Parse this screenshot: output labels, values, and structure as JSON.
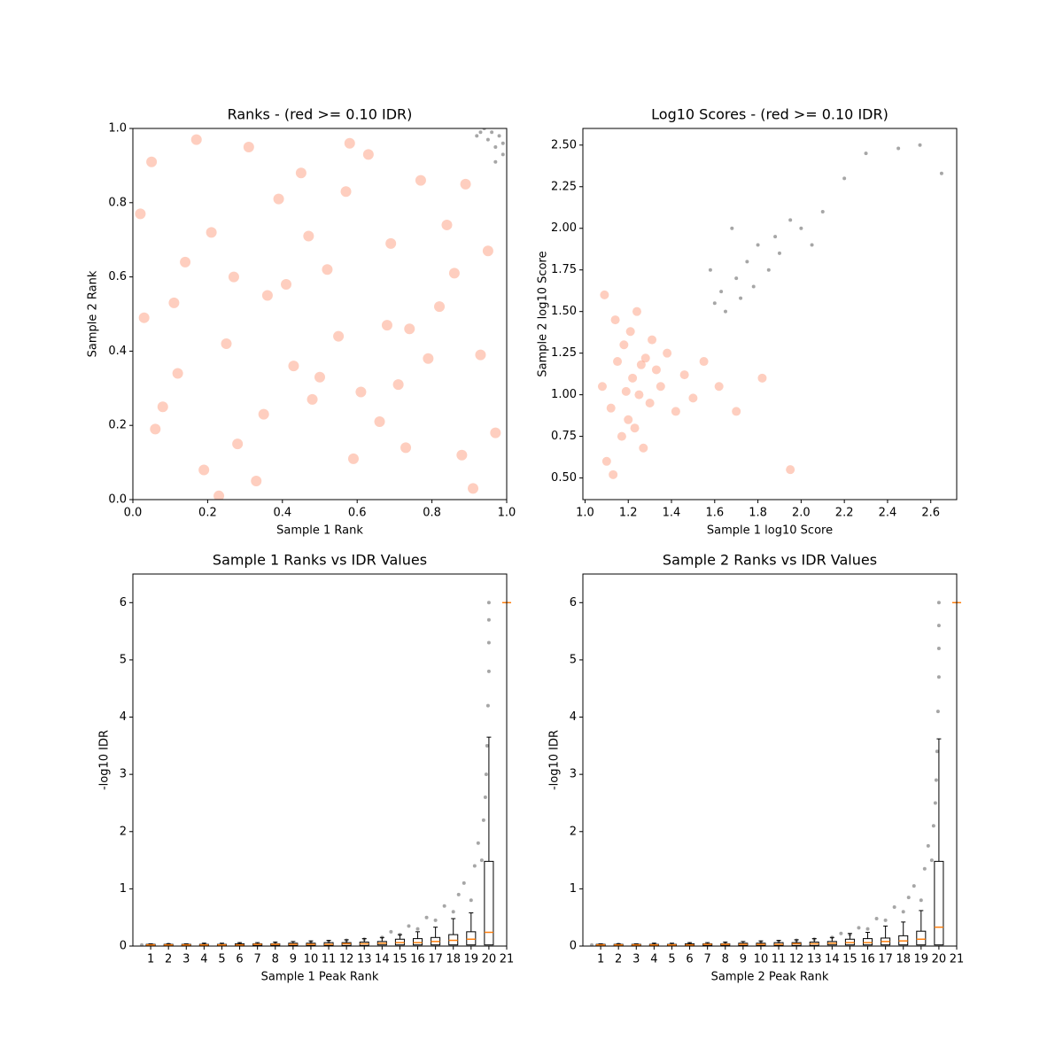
{
  "chart_data": [
    {
      "type": "scatter",
      "title": "Ranks - (red >= 0.10 IDR)",
      "xlabel": "Sample 1 Rank",
      "ylabel": "Sample 2 Rank",
      "xlim": [
        0,
        1
      ],
      "ylim": [
        0,
        1
      ],
      "xticks": [
        {
          "value": 0,
          "label": "0.0"
        },
        0.2,
        0.4,
        0.6,
        0.8,
        {
          "value": 1,
          "label": "1.0"
        }
      ],
      "yticks": [
        {
          "value": 0,
          "label": "0.0"
        },
        0.2,
        0.4,
        0.6,
        0.8,
        {
          "value": 1,
          "label": "1.0"
        }
      ],
      "series": [
        {
          "color": "#fc9272",
          "x": [
            0.05,
            0.12,
            0.21,
            0.33,
            0.41,
            0.57,
            0.66,
            0.74,
            0.88,
            0.95,
            0.03,
            0.17,
            0.28,
            0.39,
            0.48,
            0.52,
            0.63,
            0.79,
            0.84,
            0.91,
            0.08,
            0.14,
            0.25,
            0.36,
            0.45,
            0.59,
            0.69,
            0.71,
            0.82,
            0.97,
            0.02,
            0.19,
            0.31,
            0.43,
            0.55,
            0.61,
            0.77,
            0.86,
            0.93,
            0.11,
            0.23,
            0.35,
            0.47,
            0.58,
            0.68,
            0.73,
            0.89,
            0.06,
            0.27,
            0.5
          ],
          "values": [
            0.91,
            0.34,
            0.72,
            0.05,
            0.58,
            0.83,
            0.21,
            0.46,
            0.12,
            0.67,
            0.49,
            0.97,
            0.15,
            0.81,
            0.27,
            0.62,
            0.93,
            0.38,
            0.74,
            0.03,
            0.25,
            0.64,
            0.42,
            0.55,
            0.88,
            0.11,
            0.69,
            0.31,
            0.52,
            0.18,
            0.77,
            0.08,
            0.95,
            0.36,
            0.44,
            0.29,
            0.86,
            0.61,
            0.39,
            0.53,
            0.01,
            0.23,
            0.71,
            0.96,
            0.47,
            0.14,
            0.85,
            0.19,
            0.6,
            0.33
          ]
        },
        {
          "color": "#000000",
          "x": [
            0.93,
            0.95,
            0.97,
            0.99,
            0.96,
            0.98,
            0.94,
            0.99,
            0.92,
            0.97
          ],
          "values": [
            0.99,
            0.97,
            0.95,
            0.93,
            0.99,
            0.98,
            1.0,
            0.96,
            0.98,
            0.91
          ]
        }
      ]
    },
    {
      "type": "scatter",
      "title": "Log10 Scores - (red >= 0.10 IDR)",
      "xlabel": "Sample 1 log10 Score",
      "ylabel": "Sample 2 log10 Score",
      "xlim": [
        0.99,
        2.72
      ],
      "ylim": [
        0.37,
        2.6
      ],
      "xticks": [
        {
          "value": 1,
          "label": "1.0"
        },
        1.2,
        1.4,
        1.6,
        1.8,
        {
          "value": 2,
          "label": "2.0"
        },
        2.2,
        2.4,
        2.6
      ],
      "yticks": [
        {
          "value": 0.5,
          "label": "0.50"
        },
        0.75,
        {
          "value": 1,
          "label": "1.00"
        },
        1.25,
        {
          "value": 1.5,
          "label": "1.50"
        },
        1.75,
        {
          "value": 2,
          "label": "2.00"
        },
        2.25,
        {
          "value": 2.5,
          "label": "2.50"
        }
      ],
      "series": [
        {
          "color": "#fc9272",
          "x": [
            1.08,
            1.12,
            1.15,
            1.18,
            1.2,
            1.22,
            1.25,
            1.28,
            1.3,
            1.33,
            1.1,
            1.14,
            1.17,
            1.21,
            1.24,
            1.27,
            1.35,
            1.38,
            1.42,
            1.46,
            1.09,
            1.13,
            1.19,
            1.23,
            1.26,
            1.31,
            1.5,
            1.55,
            1.62,
            1.7,
            1.82,
            1.95
          ],
          "values": [
            1.05,
            0.92,
            1.2,
            1.3,
            0.85,
            1.1,
            1.0,
            1.22,
            0.95,
            1.15,
            0.6,
            1.45,
            0.75,
            1.38,
            1.5,
            0.68,
            1.05,
            1.25,
            0.9,
            1.12,
            1.6,
            0.52,
            1.02,
            0.8,
            1.18,
            1.33,
            0.98,
            1.2,
            1.05,
            0.9,
            1.1,
            0.55
          ]
        },
        {
          "color": "#000000",
          "x": [
            1.6,
            1.63,
            1.65,
            1.7,
            1.72,
            1.75,
            1.78,
            1.8,
            1.85,
            1.88,
            1.9,
            1.95,
            2.0,
            2.05,
            2.1,
            2.2,
            2.3,
            2.45,
            2.55,
            2.65,
            1.58,
            1.68
          ],
          "values": [
            1.55,
            1.62,
            1.5,
            1.7,
            1.58,
            1.8,
            1.65,
            1.9,
            1.75,
            1.95,
            1.85,
            2.05,
            2.0,
            1.9,
            2.1,
            2.3,
            2.45,
            2.48,
            2.5,
            2.33,
            1.75,
            2.0
          ]
        }
      ]
    },
    {
      "type": "box",
      "title": "Sample 1 Ranks vs IDR Values",
      "xlabel": "Sample 1 Peak Rank",
      "ylabel": "-log10 IDR",
      "xlim": [
        0,
        21
      ],
      "ylim": [
        0,
        6.5
      ],
      "xticks": [
        1,
        2,
        3,
        4,
        5,
        6,
        7,
        8,
        9,
        10,
        11,
        12,
        13,
        14,
        15,
        16,
        17,
        18,
        19,
        20,
        21
      ],
      "yticks": [
        0,
        1,
        2,
        3,
        4,
        5,
        6
      ],
      "series": [
        {
          "color": "#000000",
          "x": [
            0.5,
            2,
            4,
            6,
            8,
            10,
            11,
            12,
            13,
            14,
            14.5,
            15,
            15.5,
            16,
            16.5,
            17,
            17.5,
            18,
            18.3,
            18.6,
            19,
            19.2,
            19.4,
            19.6,
            19.7,
            19.8,
            19.85,
            19.9,
            19.95,
            20,
            20,
            20,
            20
          ],
          "values": [
            0.02,
            0.03,
            0.03,
            0.04,
            0.05,
            0.07,
            0.08,
            0.1,
            0.12,
            0.15,
            0.25,
            0.2,
            0.35,
            0.3,
            0.5,
            0.45,
            0.7,
            0.6,
            0.9,
            1.1,
            0.8,
            1.4,
            1.8,
            1.5,
            2.2,
            2.6,
            3.0,
            3.5,
            4.2,
            4.8,
            5.3,
            5.7,
            6.0
          ]
        }
      ],
      "median_color": "#ff7f0e",
      "box_x": [
        1,
        2,
        3,
        4,
        5,
        6,
        7,
        8,
        9,
        10,
        11,
        12,
        13,
        14,
        15,
        16,
        17,
        18,
        19,
        20,
        21
      ],
      "box_q1": [
        0.01,
        0.01,
        0.01,
        0.01,
        0.01,
        0.01,
        0.01,
        0.01,
        0.01,
        0.01,
        0.01,
        0.01,
        0.01,
        0.02,
        0.02,
        0.02,
        0.02,
        0.02,
        0.02,
        0.02,
        6
      ],
      "box_median": [
        0.02,
        0.02,
        0.02,
        0.02,
        0.02,
        0.02,
        0.03,
        0.03,
        0.03,
        0.03,
        0.03,
        0.04,
        0.04,
        0.05,
        0.06,
        0.06,
        0.08,
        0.1,
        0.12,
        0.24,
        6
      ],
      "box_q3": [
        0.03,
        0.03,
        0.03,
        0.03,
        0.03,
        0.04,
        0.04,
        0.04,
        0.05,
        0.05,
        0.06,
        0.06,
        0.07,
        0.08,
        0.12,
        0.13,
        0.15,
        0.2,
        0.25,
        1.48,
        6
      ],
      "box_whisker_high": [
        0.04,
        0.04,
        0.04,
        0.05,
        0.05,
        0.06,
        0.06,
        0.07,
        0.08,
        0.09,
        0.1,
        0.11,
        0.13,
        0.15,
        0.2,
        0.25,
        0.33,
        0.48,
        0.58,
        3.65,
        6
      ]
    },
    {
      "type": "box",
      "title": "Sample 2 Ranks vs IDR Values",
      "xlabel": "Sample 2 Peak Rank",
      "ylabel": "-log10 IDR",
      "xlim": [
        0,
        21
      ],
      "ylim": [
        0,
        6.5
      ],
      "xticks": [
        1,
        2,
        3,
        4,
        5,
        6,
        7,
        8,
        9,
        10,
        11,
        12,
        13,
        14,
        15,
        16,
        17,
        18,
        19,
        20,
        21
      ],
      "yticks": [
        0,
        1,
        2,
        3,
        4,
        5,
        6
      ],
      "series": [
        {
          "color": "#000000",
          "x": [
            0.5,
            2,
            4,
            6,
            8,
            10,
            11,
            12,
            13,
            14,
            14.5,
            15,
            15.5,
            16,
            16.5,
            17,
            17.5,
            18,
            18.3,
            18.6,
            19,
            19.2,
            19.4,
            19.6,
            19.7,
            19.8,
            19.85,
            19.9,
            19.95,
            20,
            20,
            20,
            20
          ],
          "values": [
            0.02,
            0.03,
            0.03,
            0.04,
            0.05,
            0.07,
            0.08,
            0.1,
            0.12,
            0.15,
            0.22,
            0.2,
            0.32,
            0.3,
            0.48,
            0.45,
            0.68,
            0.6,
            0.85,
            1.05,
            0.8,
            1.35,
            1.75,
            1.5,
            2.1,
            2.5,
            2.9,
            3.4,
            4.1,
            4.7,
            5.2,
            5.6,
            6.0
          ]
        }
      ],
      "median_color": "#ff7f0e",
      "box_x": [
        1,
        2,
        3,
        4,
        5,
        6,
        7,
        8,
        9,
        10,
        11,
        12,
        13,
        14,
        15,
        16,
        17,
        18,
        19,
        20,
        21
      ],
      "box_q1": [
        0.01,
        0.01,
        0.01,
        0.01,
        0.01,
        0.01,
        0.01,
        0.01,
        0.01,
        0.01,
        0.01,
        0.01,
        0.01,
        0.02,
        0.02,
        0.02,
        0.02,
        0.02,
        0.02,
        0.02,
        6
      ],
      "box_median": [
        0.02,
        0.02,
        0.02,
        0.02,
        0.02,
        0.02,
        0.03,
        0.03,
        0.03,
        0.03,
        0.03,
        0.04,
        0.04,
        0.05,
        0.06,
        0.06,
        0.08,
        0.09,
        0.12,
        0.33,
        6
      ],
      "box_q3": [
        0.03,
        0.03,
        0.03,
        0.03,
        0.03,
        0.04,
        0.04,
        0.04,
        0.05,
        0.05,
        0.06,
        0.06,
        0.07,
        0.08,
        0.12,
        0.13,
        0.14,
        0.18,
        0.26,
        1.48,
        6
      ],
      "box_whisker_high": [
        0.04,
        0.04,
        0.04,
        0.05,
        0.05,
        0.06,
        0.06,
        0.07,
        0.08,
        0.09,
        0.1,
        0.11,
        0.13,
        0.15,
        0.22,
        0.24,
        0.35,
        0.42,
        0.62,
        3.62,
        6
      ]
    }
  ]
}
